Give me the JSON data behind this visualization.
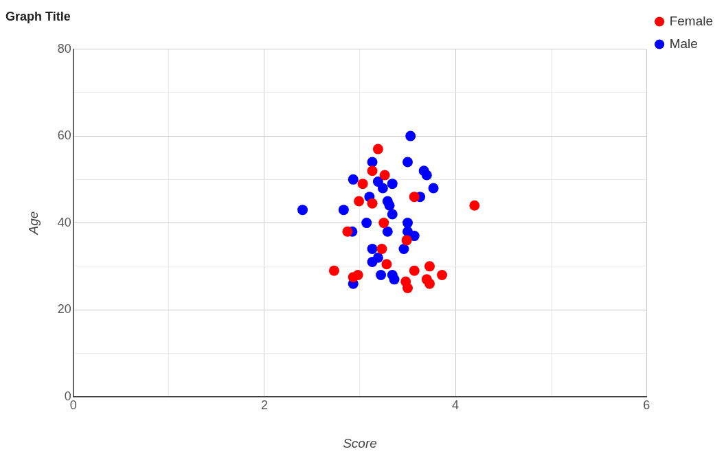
{
  "chart_data": {
    "type": "scatter",
    "title": "Graph Title",
    "xlabel": "Score",
    "ylabel": "Age",
    "xlim": [
      0,
      6
    ],
    "ylim": [
      0,
      80
    ],
    "xticks": [
      0,
      {
        "value": 1,
        "label": null
      },
      2,
      {
        "value": 3,
        "label": null
      },
      4,
      {
        "value": 5,
        "label": null
      },
      6
    ],
    "yticks": [
      0,
      {
        "value": 10,
        "label": null
      },
      20,
      {
        "value": 30,
        "label": null
      },
      40,
      {
        "value": 50,
        "label": null
      },
      60,
      {
        "value": 70,
        "label": null
      },
      80
    ],
    "grid": true,
    "legend": "top right",
    "marker": "circle",
    "series": [
      {
        "name": "Female",
        "color": "#ff0000",
        "x": [
          3.19,
          3.03,
          3.13,
          3.26,
          2.99,
          3.13,
          3.57,
          4.2,
          3.25,
          2.87,
          3.49,
          3.23,
          3.28,
          2.73,
          2.98,
          2.93,
          3.57,
          3.73,
          3.86,
          3.7,
          3.73,
          3.48,
          3.5
        ],
        "values": [
          57,
          49,
          52,
          51,
          45,
          44.5,
          46,
          44,
          40,
          38,
          36,
          34,
          30.5,
          29,
          28,
          27.5,
          29,
          30,
          28,
          27,
          26,
          26.5,
          25
        ]
      },
      {
        "name": "Male",
        "color": "#0000ff",
        "x": [
          3.53,
          3.13,
          3.5,
          3.67,
          3.7,
          2.93,
          3.19,
          3.34,
          3.24,
          3.77,
          3.1,
          3.63,
          3.29,
          3.31,
          2.4,
          2.83,
          3.34,
          3.07,
          3.5,
          2.92,
          3.29,
          3.5,
          3.57,
          3.13,
          3.46,
          3.19,
          3.13,
          3.22,
          3.34,
          3.36,
          2.93
        ],
        "values": [
          60,
          54,
          54,
          52,
          51,
          50,
          49.5,
          49,
          48,
          48,
          46,
          46,
          45,
          44,
          43,
          43,
          42,
          40,
          40,
          38,
          38,
          38,
          37,
          34,
          34,
          32,
          31,
          28,
          28,
          27,
          26
        ]
      }
    ]
  }
}
